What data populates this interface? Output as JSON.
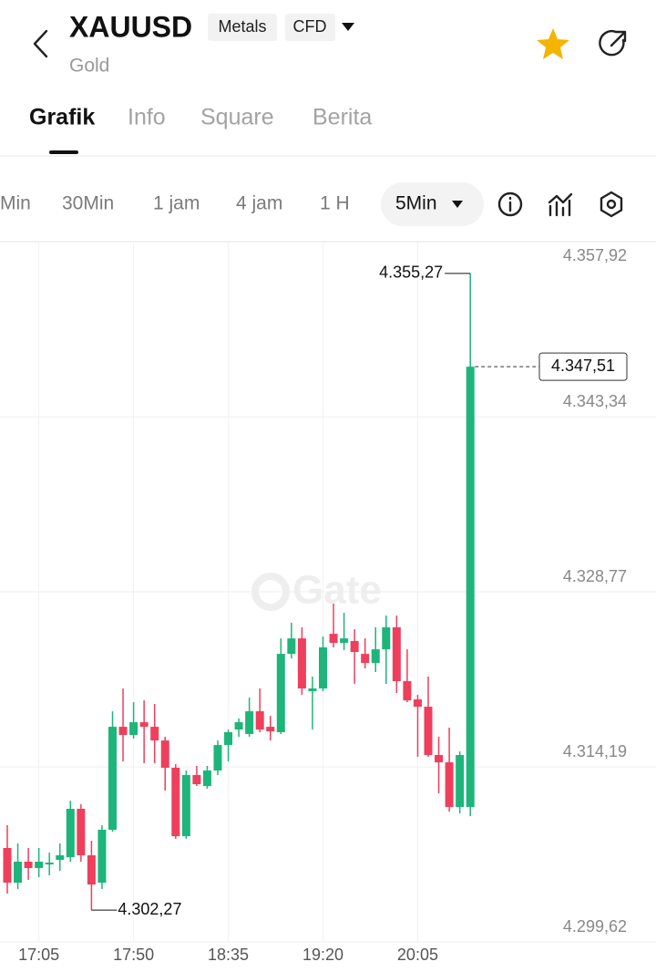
{
  "header": {
    "symbol": "XAUUSD",
    "badges": [
      "Metals",
      "CFD"
    ],
    "name": "Gold"
  },
  "tabs": [
    "Grafik",
    "Info",
    "Square",
    "Berita"
  ],
  "timeframes": [
    "Min",
    "30Min",
    "1 jam",
    "4 jam",
    "1 H"
  ],
  "active_timeframe": "5Min",
  "chart_data": {
    "type": "candlestick",
    "watermark": "Gate",
    "categories": [
      null,
      null,
      null,
      "17:05",
      null,
      null,
      null,
      null,
      null,
      null,
      null,
      null,
      "17:50",
      null,
      null,
      null,
      null,
      null,
      null,
      null,
      null,
      "18:35",
      null,
      null,
      null,
      null,
      null,
      null,
      null,
      null,
      "19:20",
      null,
      null,
      null,
      null,
      null,
      null,
      null,
      null,
      "20:05",
      null,
      null,
      null,
      null,
      null
    ],
    "open": [
      4307.44,
      4304.55,
      4306.3,
      4305.77,
      4306.07,
      4306.45,
      4306.68,
      4310.7,
      4306.83,
      4304.55,
      4308.96,
      4317.53,
      4316.85,
      4317.91,
      4317.53,
      4316.39,
      4314.12,
      4308.42,
      4313.51,
      4312.6,
      4313.89,
      4316.01,
      4317.3,
      4316.93,
      4318.82,
      4317.53,
      4317.08,
      4323.6,
      4324.89,
      4320.49,
      4320.72,
      4325.27,
      4324.52,
      4324.67,
      4323.6,
      4322.85,
      4323.98,
      4325.81,
      4321.33,
      4319.81,
      4319.2,
      4315.18,
      4314.57,
      4310.85,
      4310.85
    ],
    "high": [
      4309.34,
      4307.82,
      4307.44,
      4307.44,
      4307.06,
      4307.82,
      4311.38,
      4311.08,
      4308.04,
      4309.34,
      4318.82,
      4320.72,
      4319.58,
      4319.73,
      4319.43,
      4316.7,
      4314.42,
      4313.89,
      4314.27,
      4314.27,
      4316.39,
      4317.3,
      4318.22,
      4319.96,
      4320.72,
      4318.44,
      4324.89,
      4326.19,
      4325.81,
      4321.71,
      4325.05,
      4327.78,
      4327.02,
      4325.65,
      4324.89,
      4325.81,
      4326.79,
      4326.79,
      4323.98,
      4320.19,
      4321.71,
      4316.7,
      4317.46,
      4315.48,
      4355.27
    ],
    "low": [
      4303.64,
      4304.02,
      4304.78,
      4305.01,
      4305.16,
      4305.54,
      4306.3,
      4306.3,
      4302.27,
      4304.02,
      4308.8,
      4314.65,
      4316.55,
      4314.5,
      4314.5,
      4312.22,
      4308.2,
      4308.2,
      4312.6,
      4312.37,
      4313.51,
      4314.65,
      4316.7,
      4316.7,
      4317.08,
      4316.39,
      4316.93,
      4323.22,
      4320.19,
      4317.3,
      4320.49,
      4324.14,
      4323.91,
      4321.1,
      4322.39,
      4322.09,
      4321.1,
      4320.34,
      4319.58,
      4315.03,
      4315.03,
      4311.99,
      4310.47,
      4310.32,
      4310.09
    ],
    "close": [
      4304.55,
      4306.3,
      4305.77,
      4306.3,
      4306.22,
      4306.83,
      4310.7,
      4306.83,
      4304.4,
      4308.96,
      4317.53,
      4316.85,
      4317.91,
      4317.53,
      4316.39,
      4314.12,
      4308.42,
      4313.51,
      4312.75,
      4313.89,
      4316.01,
      4317.08,
      4317.91,
      4318.82,
      4317.3,
      4317.15,
      4323.6,
      4324.89,
      4320.72,
      4320.72,
      4324.14,
      4324.52,
      4324.89,
      4323.76,
      4322.85,
      4323.98,
      4325.81,
      4321.33,
      4319.73,
      4319.2,
      4315.18,
      4314.57,
      4310.85,
      4315.18,
      4347.51
    ],
    "up_color": "#1db57a",
    "down_color": "#ee3f5c",
    "ylim": [
      4299.62,
      4357.92
    ],
    "yticks": [
      {
        "value": 4299.62,
        "label": "4.299,62"
      },
      {
        "value": 4314.19,
        "label": "4.314,19"
      },
      {
        "value": 4328.77,
        "label": "4.328,77"
      },
      {
        "value": 4343.34,
        "label": "4.343,34"
      },
      {
        "value": 4357.92,
        "label": "4.357,92"
      }
    ],
    "grid": true,
    "high_label": {
      "value": 4355.27,
      "label": "4.355,27"
    },
    "low_label": {
      "value": 4302.27,
      "label": "4.302,27"
    },
    "last_price": {
      "value": 4347.51,
      "label": "4.347,51"
    }
  }
}
